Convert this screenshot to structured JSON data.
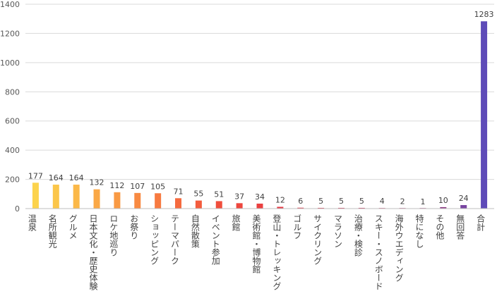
{
  "chart_data": {
    "type": "bar",
    "title": "",
    "xlabel": "",
    "ylabel": "",
    "ylim": [
      0,
      1400
    ],
    "yticks": [
      0,
      200,
      400,
      600,
      800,
      1000,
      1200,
      1400
    ],
    "grid": true,
    "legend": "none",
    "categories": [
      "温泉",
      "名所観光",
      "グルメ",
      "日本文化・歴史体験",
      "ロケ地巡り",
      "お祭り",
      "ショッピング",
      "テーマパーク",
      "自然散策",
      "イベント参加",
      "旅館",
      "美術館・博物館",
      "登山・トレッキング",
      "ゴルフ",
      "サイクリング",
      "マラソン",
      "治療・検診",
      "スキー・スノボード",
      "海外ウエディング",
      "特になし",
      "その他",
      "無回答",
      "合計"
    ],
    "values": [
      177,
      164,
      164,
      132,
      112,
      107,
      105,
      71,
      55,
      51,
      37,
      34,
      12,
      6,
      5,
      5,
      5,
      4,
      2,
      1,
      10,
      24,
      1283
    ],
    "colors": [
      "#fcd34d",
      "#fbc64a",
      "#fbb848",
      "#faa846",
      "#f99a44",
      "#f88a42",
      "#f77a40",
      "#f56a3e",
      "#f35c3d",
      "#f04e3c",
      "#ed463d",
      "#ea3f3f",
      "#e53a44",
      "#df3849",
      "#d8374f",
      "#d13655",
      "#c8365c",
      "#be3764",
      "#b0396e",
      "#a03b79",
      "#8e3e86",
      "#7844a0",
      "#5e4bb8"
    ]
  }
}
